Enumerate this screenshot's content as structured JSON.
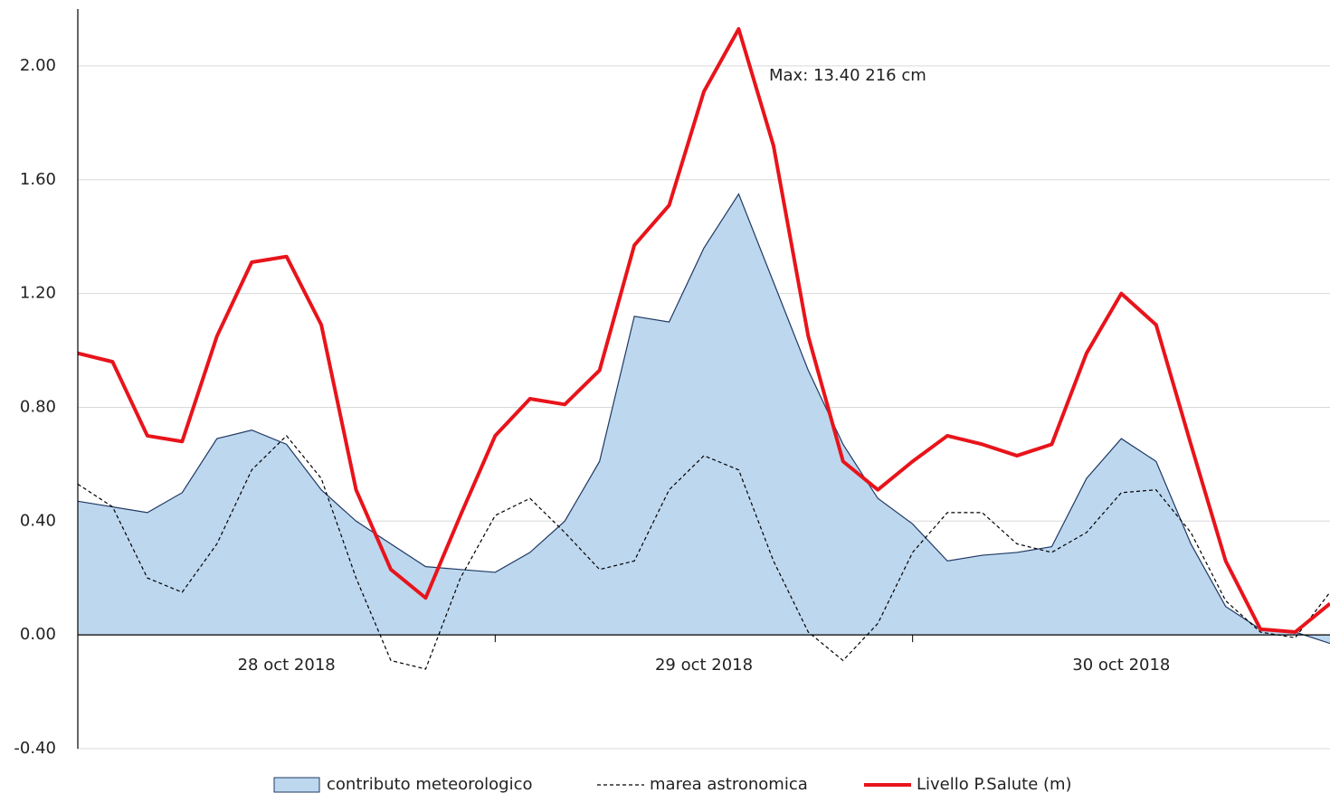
{
  "chart_data": {
    "type": "line",
    "annotation": "Max: 13.40  216 cm",
    "categories": [
      null,
      null,
      null,
      null,
      null,
      null,
      "28 oct 2018",
      null,
      null,
      null,
      null,
      null,
      null,
      null,
      null,
      null,
      null,
      null,
      "29 oct 2018",
      null,
      null,
      null,
      null,
      null,
      null,
      null,
      null,
      null,
      null,
      null,
      "30 oct 2018",
      null,
      null,
      null,
      null,
      null,
      null
    ],
    "series": [
      {
        "name": "contributo meteorologico",
        "kind": "area",
        "color": "#bdd7ee",
        "line_color": "#1f3864",
        "values": [
          0.47,
          0.45,
          0.43,
          0.5,
          0.69,
          0.72,
          0.67,
          0.51,
          0.4,
          0.32,
          0.24,
          0.23,
          0.22,
          0.29,
          0.4,
          0.61,
          1.12,
          1.1,
          1.36,
          1.55,
          1.24,
          0.93,
          0.67,
          0.48,
          0.39,
          0.26,
          0.28,
          0.29,
          0.31,
          0.55,
          0.69,
          0.61,
          0.32,
          0.1,
          0.02,
          0.01,
          -0.03
        ]
      },
      {
        "name": "marea astronomica",
        "kind": "dashed",
        "color": "#000000",
        "values": [
          0.53,
          0.45,
          0.2,
          0.15,
          0.32,
          0.58,
          0.7,
          0.55,
          0.2,
          -0.09,
          -0.12,
          0.2,
          0.42,
          0.48,
          0.36,
          0.23,
          0.26,
          0.51,
          0.63,
          0.58,
          0.26,
          0.01,
          -0.09,
          0.04,
          0.29,
          0.43,
          0.43,
          0.32,
          0.29,
          0.36,
          0.5,
          0.51,
          0.36,
          0.12,
          0.01,
          -0.01,
          0.15
        ]
      },
      {
        "name": "Livello P.Salute (m)",
        "kind": "line",
        "color": "#e8141b",
        "values": [
          0.99,
          0.96,
          0.7,
          0.68,
          1.05,
          1.31,
          1.33,
          1.09,
          0.51,
          0.23,
          0.13,
          0.42,
          0.7,
          0.83,
          0.81,
          0.93,
          1.37,
          1.51,
          1.91,
          2.13,
          1.72,
          1.05,
          0.61,
          0.51,
          0.61,
          0.7,
          0.67,
          0.63,
          0.67,
          0.99,
          1.2,
          1.09,
          0.67,
          0.26,
          0.02,
          0.01,
          0.11
        ]
      }
    ],
    "ylim": [
      -0.4,
      2.2
    ],
    "yticks": [
      {
        "value": -0.4,
        "label": "-0.40"
      },
      {
        "value": 0,
        "label": "0.00"
      },
      {
        "value": 0.4,
        "label": "0.40"
      },
      {
        "value": 0.8,
        "label": "0.80"
      },
      {
        "value": 1.2,
        "label": "1.20"
      },
      {
        "value": 1.6,
        "label": "1.60"
      },
      {
        "value": 2,
        "label": "2.00"
      }
    ],
    "grid": true,
    "legend": "bottom"
  }
}
